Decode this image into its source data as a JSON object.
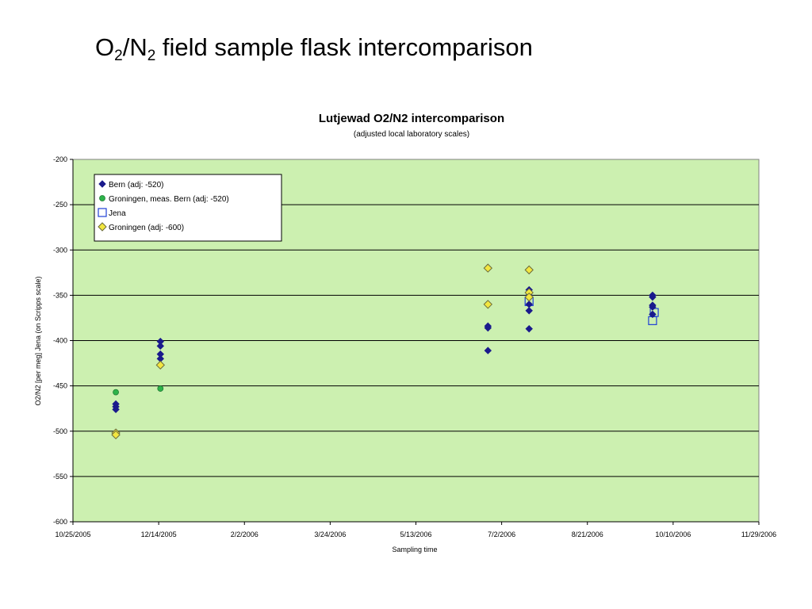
{
  "slide": {
    "title_a": "O",
    "title_sub1": "2",
    "title_b": "/N",
    "title_sub2": "2",
    "title_c": " field sample flask intercomparison"
  },
  "chart_data": {
    "type": "scatter",
    "title": "Lutjewad O2/N2 intercomparison",
    "subtitle": "(adjusted local laboratory scales)",
    "xlabel": "Sampling time",
    "ylabel": "O2/N2 [per meg]  Jena (on Scripps scale)",
    "xlim": [
      "2005-10-25",
      "2006-11-29"
    ],
    "ylim": [
      -600,
      -200
    ],
    "x_ticks": [
      {
        "date": "2005-10-25",
        "label": "10/25/2005"
      },
      {
        "date": "2005-12-14",
        "label": "12/14/2005"
      },
      {
        "date": "2006-02-02",
        "label": "2/2/2006"
      },
      {
        "date": "2006-03-24",
        "label": "3/24/2006"
      },
      {
        "date": "2006-05-13",
        "label": "5/13/2006"
      },
      {
        "date": "2006-07-02",
        "label": "7/2/2006"
      },
      {
        "date": "2006-08-21",
        "label": "8/21/2006"
      },
      {
        "date": "2006-10-10",
        "label": "10/10/2006"
      },
      {
        "date": "2006-11-29",
        "label": "11/29/2006"
      }
    ],
    "y_ticks": [
      -200,
      -250,
      -300,
      -350,
      -400,
      -450,
      -500,
      -550,
      -600
    ],
    "grid": "horizontal",
    "background": "#ccf0b0",
    "legend_position": "top-left",
    "series": [
      {
        "name": "Bern (adj: -520)",
        "marker": "diamond-filled",
        "color": "#1a1a8c",
        "points": [
          {
            "x": "2005-11-19",
            "y": -470
          },
          {
            "x": "2005-11-19",
            "y": -473
          },
          {
            "x": "2005-11-19",
            "y": -476
          },
          {
            "x": "2005-12-15",
            "y": -401
          },
          {
            "x": "2005-12-15",
            "y": -406
          },
          {
            "x": "2005-12-15",
            "y": -415
          },
          {
            "x": "2005-12-15",
            "y": -420
          },
          {
            "x": "2006-06-24",
            "y": -384
          },
          {
            "x": "2006-06-24",
            "y": -386
          },
          {
            "x": "2006-06-24",
            "y": -411
          },
          {
            "x": "2006-07-18",
            "y": -344
          },
          {
            "x": "2006-07-18",
            "y": -350
          },
          {
            "x": "2006-07-18",
            "y": -360
          },
          {
            "x": "2006-07-18",
            "y": -367
          },
          {
            "x": "2006-07-18",
            "y": -387
          },
          {
            "x": "2006-09-28",
            "y": -350
          },
          {
            "x": "2006-09-28",
            "y": -352
          },
          {
            "x": "2006-09-28",
            "y": -361
          },
          {
            "x": "2006-09-28",
            "y": -363
          },
          {
            "x": "2006-09-28",
            "y": -371
          }
        ]
      },
      {
        "name": "Groningen, meas. Bern (adj: -520)",
        "marker": "circle-filled",
        "color": "#2db34a",
        "points": [
          {
            "x": "2005-11-19",
            "y": -457
          },
          {
            "x": "2005-12-15",
            "y": -453
          }
        ]
      },
      {
        "name": "Jena",
        "marker": "square-open",
        "color": "#1f3fd6",
        "points": [
          {
            "x": "2006-07-18",
            "y": -357
          },
          {
            "x": "2006-09-28",
            "y": -378
          },
          {
            "x": "2006-09-29",
            "y": -369
          }
        ]
      },
      {
        "name": "Groningen (adj: -600)",
        "marker": "diamond-open",
        "color": "#f2e640",
        "points": [
          {
            "x": "2005-11-19",
            "y": -502
          },
          {
            "x": "2005-11-19",
            "y": -504
          },
          {
            "x": "2005-12-15",
            "y": -427
          },
          {
            "x": "2006-06-24",
            "y": -320
          },
          {
            "x": "2006-06-24",
            "y": -360
          },
          {
            "x": "2006-07-18",
            "y": -322
          },
          {
            "x": "2006-07-18",
            "y": -347
          },
          {
            "x": "2006-07-18",
            "y": -352
          }
        ]
      }
    ]
  }
}
